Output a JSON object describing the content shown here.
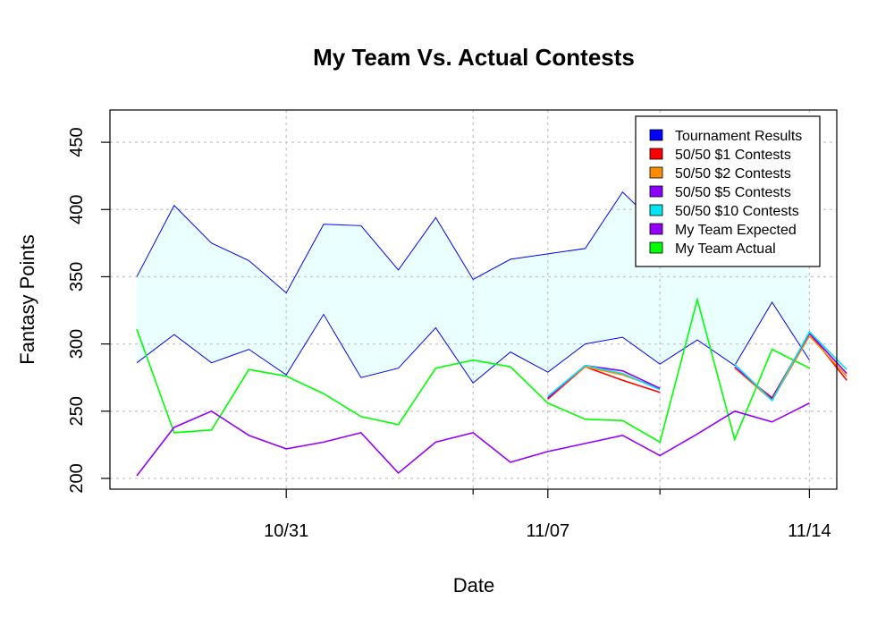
{
  "chart_data": {
    "type": "line",
    "title": "My Team Vs. Actual Contests",
    "xlabel": "Date",
    "ylabel": "Fantasy Points",
    "x_tick_labels": [
      "10/31",
      "11/07",
      "11/14"
    ],
    "y_ticks": [
      200,
      250,
      300,
      350,
      400,
      450
    ],
    "ylim": [
      192,
      474
    ],
    "grid": true,
    "legend_position": "top-right",
    "legend": [
      {
        "label": "Tournament Results",
        "color": "#0000ff"
      },
      {
        "label": "50/50 $1 Contests",
        "color": "#ff0000"
      },
      {
        "label": "50/50 $2 Contests",
        "color": "#ff8c00"
      },
      {
        "label": "50/50 $5 Contests",
        "color": "#8b00ff"
      },
      {
        "label": "50/50 $10 Contests",
        "color": "#00e5ee"
      },
      {
        "label": "My Team Expected",
        "color": "#9400ff"
      },
      {
        "label": "My Team Actual",
        "color": "#00ff00"
      }
    ],
    "tournament_band": {
      "fill": "#eaffff",
      "line_color": "#0000ff",
      "upper": [
        350,
        403,
        375,
        362,
        338,
        389,
        388,
        355,
        394,
        348,
        363,
        367,
        371,
        413,
        386,
        373,
        385,
        375,
        363
      ],
      "lower": [
        286,
        307,
        286,
        296,
        277,
        322,
        275,
        282,
        312,
        271,
        294,
        279,
        300,
        305,
        285,
        303,
        284,
        331,
        288
      ]
    },
    "series": [
      {
        "name": "My Team Actual",
        "color": "#00ff00",
        "values": [
          311,
          234,
          236,
          281,
          276,
          263,
          246,
          240,
          282,
          288,
          283,
          256,
          244,
          243,
          227,
          333,
          229,
          296,
          282
        ]
      },
      {
        "name": "My Team Expected",
        "color": "#9400ff",
        "values": [
          202,
          238,
          250,
          232,
          222,
          227,
          234,
          204,
          227,
          234,
          212,
          220,
          226,
          232,
          217,
          233,
          250,
          242,
          256
        ]
      },
      {
        "name": "50/50 $1 Contests",
        "color": "#ff0000",
        "start_index": 11,
        "values": [
          259,
          283,
          273,
          264,
          null,
          282,
          260,
          308,
          273
        ]
      },
      {
        "name": "50/50 $2 Contests",
        "color": "#ff8c00",
        "start_index": 11,
        "values": [
          260,
          283,
          277,
          267,
          null,
          282,
          258,
          306,
          276
        ]
      },
      {
        "name": "50/50 $5 Contests",
        "color": "#8b00ff",
        "start_index": 11,
        "values": [
          260,
          284,
          280,
          267,
          null,
          283,
          259,
          308,
          278
        ]
      },
      {
        "name": "50/50 $10 Contests",
        "color": "#00e5ee",
        "start_index": 11,
        "values": [
          261,
          284,
          278,
          266,
          null,
          285,
          258,
          309,
          281
        ]
      }
    ]
  }
}
